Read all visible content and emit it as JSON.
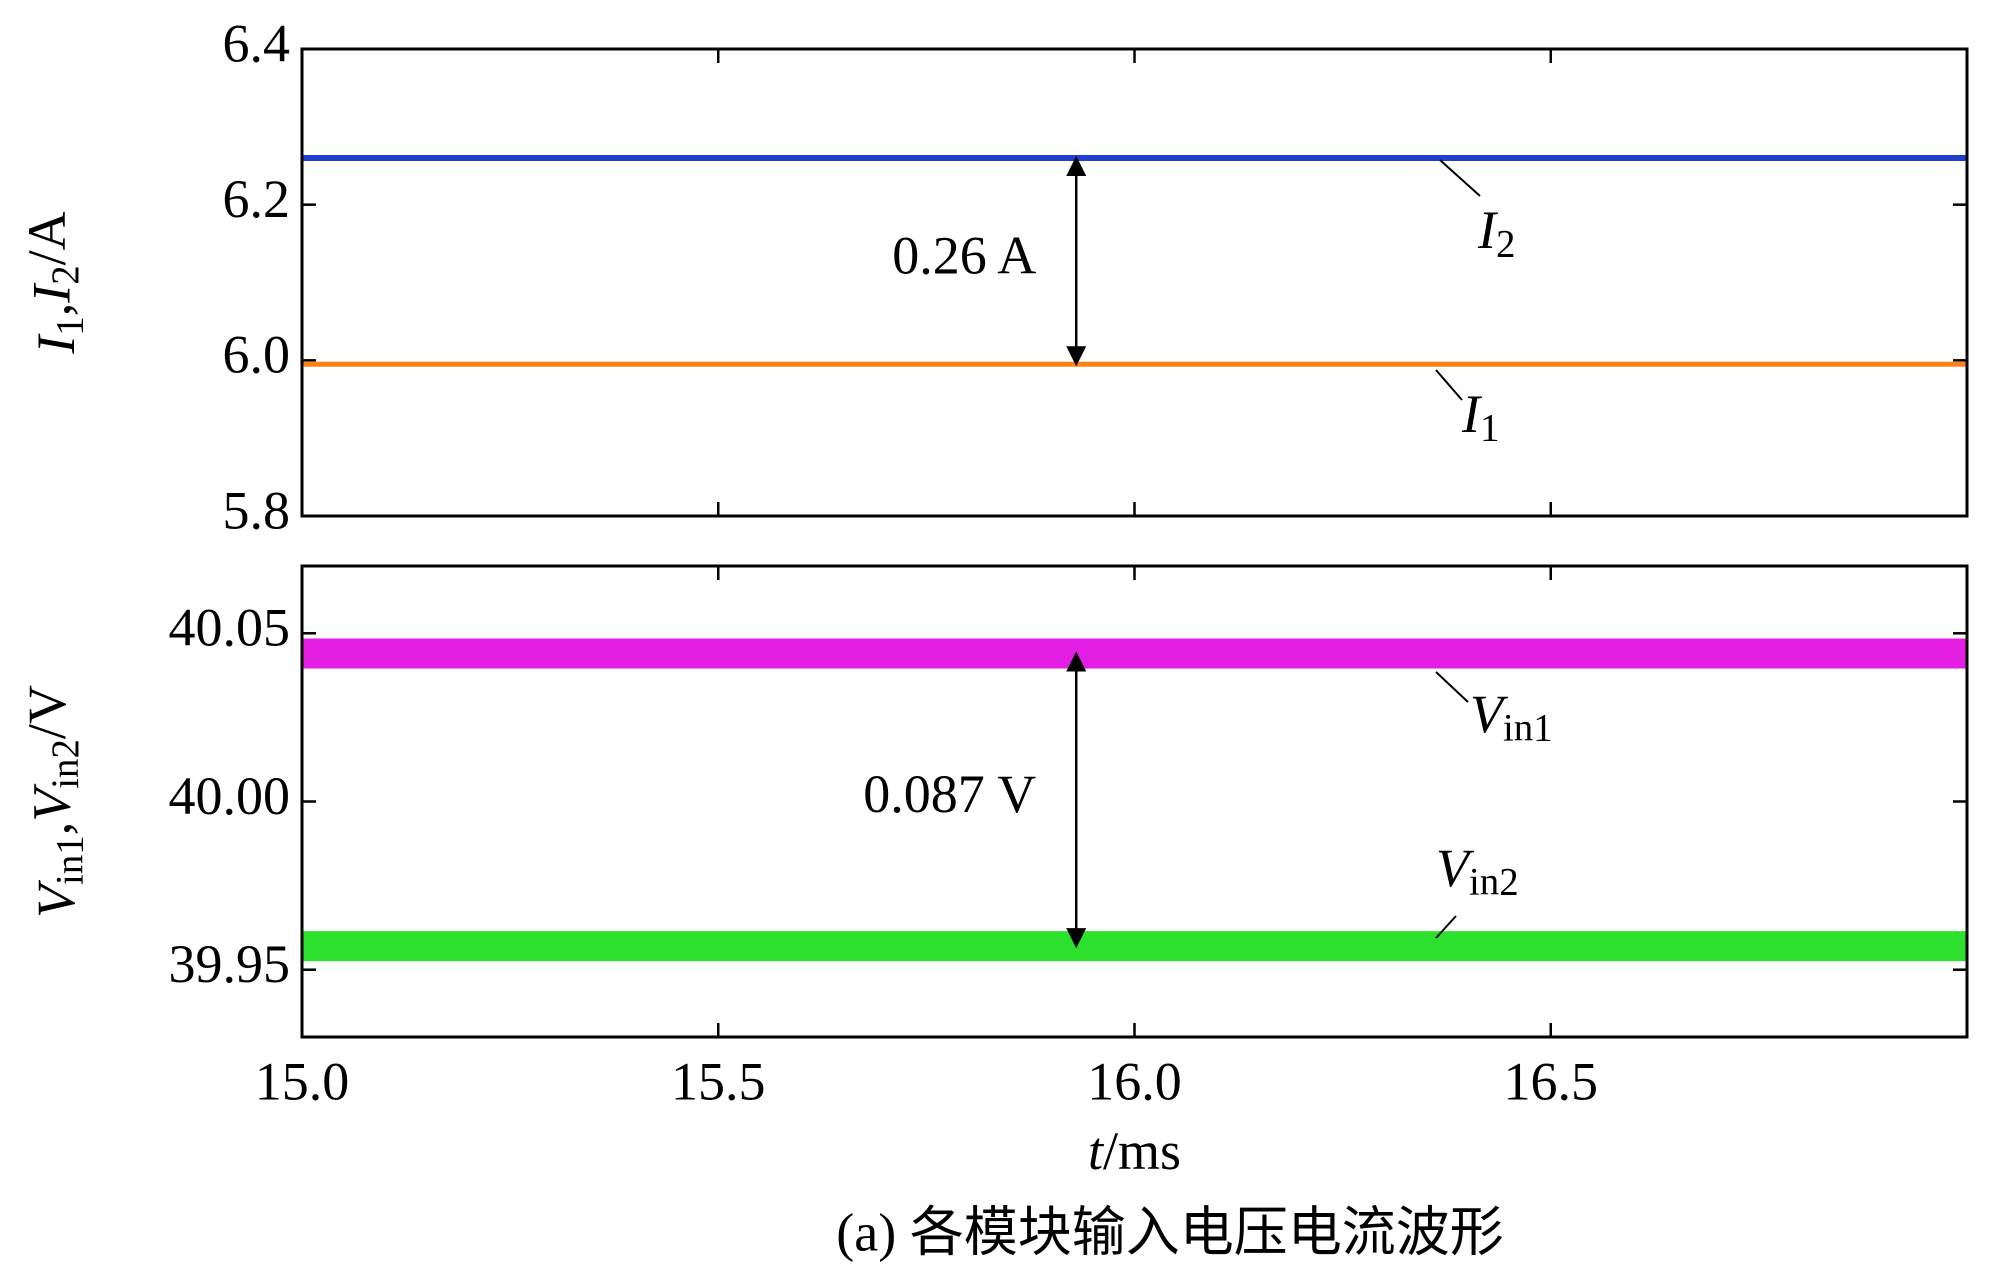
{
  "caption": "(a) 各模块输入电压电流波形",
  "chart_data": [
    {
      "type": "line",
      "ylabel": "I1,I2/A",
      "xlim": [
        15,
        17
      ],
      "ylim": [
        5.8,
        6.4
      ],
      "yticks": [
        5.8,
        {
          "value": 6,
          "label": "6.0"
        },
        6.2,
        6.4
      ],
      "series": [
        {
          "name": "I2",
          "color": "#1f3fd0",
          "x": [
            15,
            17
          ],
          "values": [
            6.26,
            6.26
          ]
        },
        {
          "name": "I1",
          "color": "#ff8214",
          "x": [
            15,
            17
          ],
          "values": [
            5.995,
            5.995
          ]
        }
      ],
      "annotations": [
        {
          "text": "0.26 A",
          "x": 15.93,
          "y1": 5.995,
          "y2": 6.26
        }
      ]
    },
    {
      "type": "line",
      "ylabel": "Vin1,Vin2/V",
      "xlabel": "t/ms",
      "xlim": [
        15,
        17
      ],
      "ylim": [
        39.93,
        40.07
      ],
      "xticks": [
        {
          "value": 15,
          "label": "15.0"
        },
        15.5,
        {
          "value": 16,
          "label": "16.0"
        },
        16.5
      ],
      "yticks": [
        39.95,
        {
          "value": 40,
          "label": "40.00"
        },
        40.05
      ],
      "series": [
        {
          "name": "Vin1",
          "color": "#e21fe2",
          "x": [
            15,
            17
          ],
          "values": [
            40.044,
            40.044
          ]
        },
        {
          "name": "Vin2",
          "color": "#2ee02e",
          "x": [
            15,
            17
          ],
          "values": [
            39.957,
            39.957
          ]
        }
      ],
      "annotations": [
        {
          "text": "0.087 V",
          "x": 15.93,
          "y1": 39.957,
          "y2": 40.044
        }
      ]
    }
  ]
}
